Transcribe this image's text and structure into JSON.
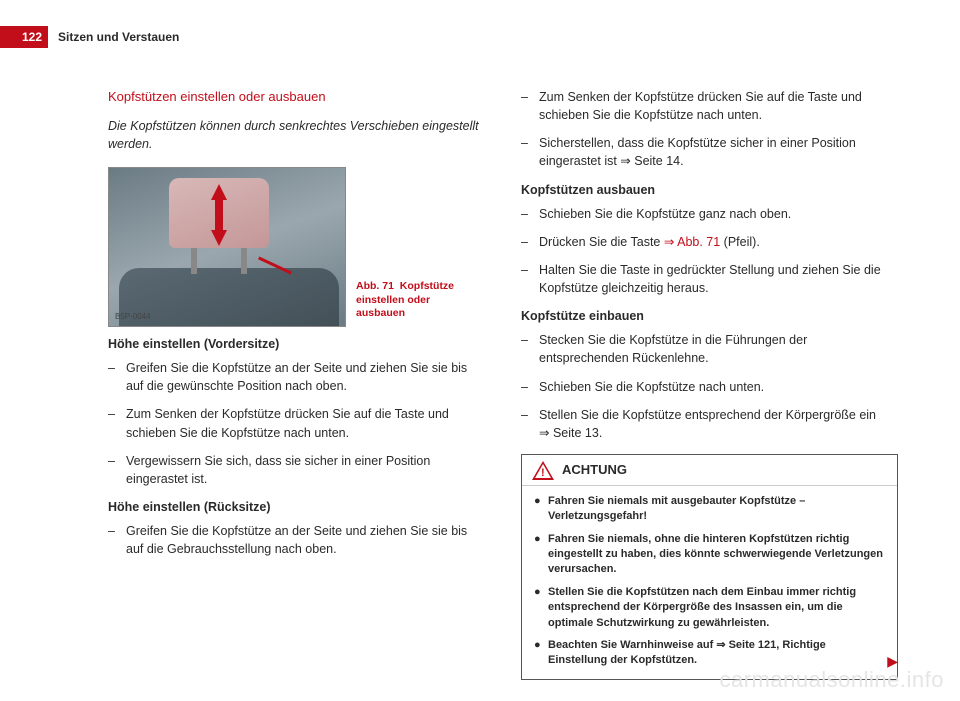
{
  "page_number": "122",
  "header": "Sitzen und Verstauen",
  "left": {
    "section_title": "Kopfstützen einstellen oder ausbauen",
    "intro": "Die Kopfstützen können durch senkrechtes Verschieben eingestellt werden.",
    "fig_id": "B5P-0044",
    "fig_caption_prefix": "Abb. 71",
    "fig_caption_text": "Kopfstütze einstellen oder ausbauen",
    "sub1": "Höhe einstellen (Vordersitze)",
    "b1": "Greifen Sie die Kopfstütze an der Seite und ziehen Sie sie bis auf die gewünschte Position nach oben.",
    "b2": "Zum Senken der Kopfstütze drücken Sie auf die Taste und schieben Sie die Kopfstütze nach unten.",
    "b3": "Vergewissern Sie sich, dass sie sicher in einer Position eingerastet ist.",
    "sub2": "Höhe einstellen (Rücksitze)",
    "b4": "Greifen Sie die Kopfstütze an der Seite und ziehen Sie sie bis auf die Gebrauchsstellung nach oben."
  },
  "right": {
    "b5a": "Zum Senken der Kopfstütze drücken Sie auf die Taste und schieben Sie die Kopfstütze nach unten.",
    "b6_pre": "Sicherstellen, dass die Kopfstütze sicher in einer Position eingerastet ist ",
    "b6_link": "⇒ Seite 14.",
    "sub3": "Kopfstützen ausbauen",
    "b7": "Schieben Sie die Kopfstütze ganz nach oben.",
    "b8_pre": "Drücken Sie die Taste ",
    "b8_link": "⇒ Abb. 71",
    "b8_post": " (Pfeil).",
    "b9": "Halten Sie die Taste in gedrückter Stellung und ziehen Sie die Kopfstütze gleichzeitig heraus.",
    "sub4": "Kopfstütze einbauen",
    "b10": "Stecken Sie die Kopfstütze in die Führungen der entsprechenden Rückenlehne.",
    "b11": "Schieben Sie die Kopfstütze nach unten.",
    "b12_pre": "Stellen Sie die Kopfstütze entsprechend der Körpergröße ein ",
    "b12_link": "⇒ Seite 13.",
    "warning_title": "ACHTUNG",
    "w1": "Fahren Sie niemals mit ausgebauter Kopfstütze – Verletzungsgefahr!",
    "w2": "Fahren Sie niemals, ohne die hinteren Kopfstützen richtig eingestellt zu haben, dies könnte schwerwiegende Verletzungen verursachen.",
    "w3": "Stellen Sie die Kopfstützen nach dem Einbau immer richtig entsprechend der Körpergröße des Insassen ein, um die optimale Schutzwirkung zu gewährleisten.",
    "w4_pre": "Beachten Sie Warnhinweise auf ",
    "w4_link": "⇒ Seite 121, Richtige Einstellung der Kopfstützen."
  },
  "watermark": "carmanualsonline.info"
}
